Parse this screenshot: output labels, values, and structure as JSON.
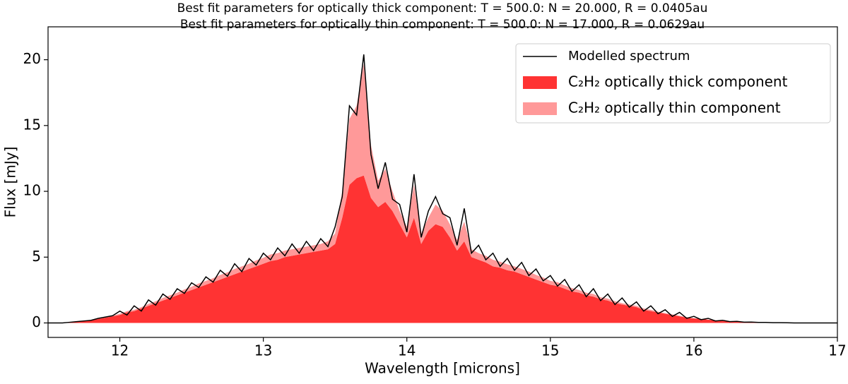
{
  "chart_data": {
    "type": "area",
    "title": [
      "Best fit parameters for optically thick component: T = 500.0: N = 20.000, R = 0.0405au",
      "Best fit parameters for optically thin component: T = 500.0: N = 17.000, R = 0.0629au"
    ],
    "x_label": "Wavelength [microns]",
    "y_label": "Flux [mJy]",
    "xlim": [
      11.5,
      17
    ],
    "ylim": [
      -1.1,
      22.5
    ],
    "xticks": [
      12,
      13,
      14,
      15,
      16,
      17
    ],
    "yticks": [
      0,
      5,
      10,
      15,
      20
    ],
    "stacked": true,
    "legend": "upper right",
    "x": [
      11.5,
      11.55,
      11.6,
      11.65,
      11.7,
      11.75,
      11.8,
      11.85,
      11.9,
      11.95,
      12.0,
      12.05,
      12.1,
      12.15,
      12.2,
      12.25,
      12.3,
      12.35,
      12.4,
      12.45,
      12.5,
      12.55,
      12.6,
      12.65,
      12.7,
      12.75,
      12.8,
      12.85,
      12.9,
      12.95,
      13.0,
      13.05,
      13.1,
      13.15,
      13.2,
      13.25,
      13.3,
      13.35,
      13.4,
      13.45,
      13.5,
      13.55,
      13.6,
      13.65,
      13.7,
      13.75,
      13.8,
      13.85,
      13.9,
      13.95,
      14.0,
      14.05,
      14.1,
      14.15,
      14.2,
      14.25,
      14.3,
      14.35,
      14.4,
      14.45,
      14.5,
      14.55,
      14.6,
      14.65,
      14.7,
      14.75,
      14.8,
      14.85,
      14.9,
      14.95,
      15.0,
      15.05,
      15.1,
      15.15,
      15.2,
      15.25,
      15.3,
      15.35,
      15.4,
      15.45,
      15.5,
      15.55,
      15.6,
      15.65,
      15.7,
      15.75,
      15.8,
      15.85,
      15.9,
      15.95,
      16.0,
      16.05,
      16.1,
      16.15,
      16.2,
      16.25,
      16.3,
      16.35,
      16.4,
      16.45,
      16.5,
      16.55,
      16.6,
      16.65,
      16.7,
      16.75,
      16.8,
      16.85,
      16.9,
      16.95,
      17.0
    ],
    "series": [
      {
        "name": "Modelled spectrum",
        "kind": "line",
        "color": "#000000",
        "values": [
          0,
          0,
          0,
          0.05,
          0.1,
          0.15,
          0.2,
          0.35,
          0.45,
          0.55,
          0.9,
          0.6,
          1.3,
          0.9,
          1.75,
          1.35,
          2.2,
          1.8,
          2.6,
          2.25,
          3.05,
          2.7,
          3.5,
          3.1,
          4.0,
          3.55,
          4.5,
          3.9,
          4.9,
          4.4,
          5.3,
          4.8,
          5.7,
          5.1,
          6.0,
          5.3,
          6.2,
          5.5,
          6.4,
          5.8,
          7.3,
          9.6,
          16.5,
          15.8,
          20.4,
          12.8,
          10.2,
          12.2,
          9.4,
          9.0,
          6.9,
          11.3,
          6.5,
          8.5,
          9.6,
          8.3,
          8.0,
          5.9,
          8.7,
          5.3,
          5.9,
          4.8,
          5.3,
          4.3,
          4.9,
          4.0,
          4.6,
          3.6,
          4.1,
          3.2,
          3.6,
          2.8,
          3.3,
          2.4,
          2.9,
          2.0,
          2.6,
          1.7,
          2.2,
          1.4,
          1.9,
          1.2,
          1.6,
          0.9,
          1.3,
          0.7,
          1.0,
          0.5,
          0.8,
          0.35,
          0.5,
          0.25,
          0.35,
          0.15,
          0.2,
          0.1,
          0.12,
          0.06,
          0.07,
          0.04,
          0.04,
          0.02,
          0.02,
          0.01,
          0,
          0,
          0,
          0,
          0,
          0,
          0
        ]
      },
      {
        "name": "C₂H₂ optically thick component",
        "kind": "area",
        "color": "#ff3333",
        "values": [
          0,
          0,
          0,
          0.05,
          0.1,
          0.15,
          0.2,
          0.3,
          0.4,
          0.5,
          0.6,
          0.8,
          0.9,
          1.1,
          1.3,
          1.5,
          1.7,
          1.9,
          2.1,
          2.3,
          2.5,
          2.7,
          2.9,
          3.1,
          3.3,
          3.5,
          3.7,
          3.9,
          4.1,
          4.3,
          4.5,
          4.7,
          4.8,
          5.0,
          5.1,
          5.2,
          5.3,
          5.4,
          5.5,
          5.6,
          6.0,
          8.0,
          10.5,
          11.0,
          11.2,
          9.5,
          8.8,
          9.2,
          8.5,
          7.5,
          6.5,
          8.0,
          6.0,
          7.0,
          7.5,
          7.3,
          6.5,
          5.5,
          6.2,
          5.0,
          4.8,
          4.6,
          4.3,
          4.2,
          4.0,
          3.9,
          3.7,
          3.5,
          3.3,
          3.1,
          2.9,
          2.8,
          2.6,
          2.4,
          2.3,
          2.1,
          2.0,
          1.8,
          1.7,
          1.5,
          1.4,
          1.3,
          1.2,
          1.0,
          0.9,
          0.8,
          0.7,
          0.6,
          0.5,
          0.4,
          0.35,
          0.3,
          0.25,
          0.2,
          0.15,
          0.12,
          0.1,
          0.08,
          0.06,
          0.05,
          0.04,
          0.03,
          0.02,
          0.01,
          0,
          0,
          0,
          0,
          0,
          0,
          0
        ]
      },
      {
        "name": "C₂H₂ optically thin component",
        "kind": "area",
        "color": "#ff9999",
        "values": [
          0,
          0,
          0,
          0,
          0,
          0,
          0,
          0.05,
          0.05,
          0.05,
          0.1,
          0.1,
          0.1,
          0.1,
          0.15,
          0.15,
          0.2,
          0.2,
          0.2,
          0.25,
          0.25,
          0.3,
          0.3,
          0.3,
          0.35,
          0.35,
          0.4,
          0.4,
          0.4,
          0.45,
          0.45,
          0.5,
          0.5,
          0.5,
          0.5,
          0.5,
          0.5,
          0.5,
          0.5,
          0.6,
          0.8,
          2.0,
          5.0,
          5.5,
          8.5,
          4.0,
          2.0,
          2.5,
          1.5,
          1.0,
          0.8,
          2.5,
          0.8,
          1.0,
          1.5,
          1.2,
          1.0,
          0.8,
          1.5,
          0.6,
          0.5,
          0.5,
          0.5,
          0.45,
          0.45,
          0.4,
          0.4,
          0.4,
          0.35,
          0.35,
          0.3,
          0.3,
          0.25,
          0.25,
          0.2,
          0.2,
          0.2,
          0.15,
          0.15,
          0.15,
          0.1,
          0.1,
          0.1,
          0.1,
          0.1,
          0.05,
          0.05,
          0.05,
          0.05,
          0.05,
          0,
          0,
          0,
          0,
          0,
          0,
          0,
          0,
          0,
          0,
          0,
          0,
          0,
          0,
          0,
          0,
          0,
          0,
          0,
          0,
          0
        ]
      }
    ]
  }
}
